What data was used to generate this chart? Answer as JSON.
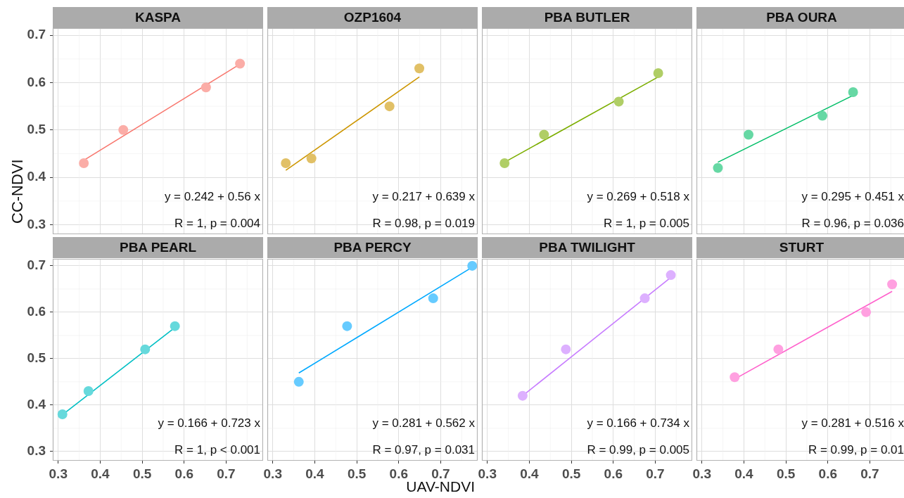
{
  "chart_data": [
    {
      "type": "scatter",
      "title": "KASPA",
      "ylabel": "CC-NDVI",
      "xlim": [
        0.287,
        0.788
      ],
      "ylim": [
        0.28,
        0.715
      ],
      "xticks": [
        0.3,
        0.4,
        0.5,
        0.6,
        0.7
      ],
      "yticks": [
        0.3,
        0.4,
        0.5,
        0.6,
        0.7
      ],
      "grid": true,
      "tick_labels": "y",
      "annotations": [
        "y = 0.242 + 0.56 x",
        "R = 1, p = 0.004"
      ],
      "series": [
        {
          "type": "scatter",
          "marker": "circle",
          "color": "#fbada7",
          "x": [
            0.361,
            0.455,
            0.652,
            0.733
          ],
          "values": [
            0.43,
            0.5,
            0.59,
            0.64
          ]
        },
        {
          "type": "line",
          "marker": "none",
          "color": "#f8766d",
          "x": [
            0.361,
            0.733
          ],
          "values": [
            0.436,
            0.639
          ]
        }
      ]
    },
    {
      "type": "scatter",
      "title": "OZP1604",
      "xlim": [
        0.287,
        0.788
      ],
      "ylim": [
        0.28,
        0.715
      ],
      "xticks": [
        0.3,
        0.4,
        0.5,
        0.6,
        0.7
      ],
      "yticks": [
        0.3,
        0.4,
        0.5,
        0.6,
        0.7
      ],
      "grid": true,
      "tick_labels": false,
      "annotations": [
        "y = 0.217 + 0.639 x",
        "R = 0.98, p = 0.019"
      ],
      "series": [
        {
          "type": "scatter",
          "marker": "circle",
          "color": "#e1c066",
          "x": [
            0.331,
            0.392,
            0.578,
            0.649
          ],
          "values": [
            0.43,
            0.44,
            0.55,
            0.63
          ]
        },
        {
          "type": "line",
          "marker": "none",
          "color": "#cd9600",
          "x": [
            0.331,
            0.649
          ],
          "values": [
            0.415,
            0.612
          ]
        }
      ]
    },
    {
      "type": "scatter",
      "title": "PBA BUTLER",
      "xlim": [
        0.287,
        0.788
      ],
      "ylim": [
        0.28,
        0.715
      ],
      "xticks": [
        0.3,
        0.4,
        0.5,
        0.6,
        0.7
      ],
      "yticks": [
        0.3,
        0.4,
        0.5,
        0.6,
        0.7
      ],
      "grid": true,
      "tick_labels": false,
      "annotations": [
        "y = 0.269 + 0.518 x",
        "R = 1, p = 0.005"
      ],
      "series": [
        {
          "type": "scatter",
          "marker": "circle",
          "color": "#b0ce66",
          "x": [
            0.341,
            0.435,
            0.613,
            0.707
          ],
          "values": [
            0.43,
            0.49,
            0.56,
            0.62
          ]
        },
        {
          "type": "line",
          "marker": "none",
          "color": "#7cae00",
          "x": [
            0.341,
            0.707
          ],
          "values": [
            0.432,
            0.612
          ]
        }
      ]
    },
    {
      "type": "scatter",
      "title": "PBA OURA",
      "xlim": [
        0.287,
        0.788
      ],
      "ylim": [
        0.28,
        0.715
      ],
      "xticks": [
        0.3,
        0.4,
        0.5,
        0.6,
        0.7
      ],
      "yticks": [
        0.3,
        0.4,
        0.5,
        0.6,
        0.7
      ],
      "grid": true,
      "tick_labels": false,
      "annotations": [
        "y = 0.295 + 0.451 x",
        "R = 0.96, p = 0.036"
      ],
      "series": [
        {
          "type": "scatter",
          "marker": "circle",
          "color": "#66d8a4",
          "x": [
            0.338,
            0.411,
            0.587,
            0.66
          ],
          "values": [
            0.42,
            0.49,
            0.53,
            0.58
          ]
        },
        {
          "type": "line",
          "marker": "none",
          "color": "#00be67",
          "x": [
            0.338,
            0.66
          ],
          "values": [
            0.432,
            0.573
          ]
        }
      ]
    },
    {
      "type": "scatter",
      "title": "PBA PEARL",
      "xlim": [
        0.287,
        0.788
      ],
      "ylim": [
        0.28,
        0.715
      ],
      "xticks": [
        0.3,
        0.4,
        0.5,
        0.6,
        0.7
      ],
      "yticks": [
        0.3,
        0.4,
        0.5,
        0.6,
        0.7
      ],
      "grid": true,
      "annotations": [
        "y = 0.166 + 0.723 x",
        "R = 1, p < 0.001"
      ],
      "series": [
        {
          "type": "scatter",
          "marker": "circle",
          "color": "#66d9dc",
          "x": [
            0.31,
            0.372,
            0.507,
            0.578
          ],
          "values": [
            0.38,
            0.43,
            0.52,
            0.57
          ]
        },
        {
          "type": "line",
          "marker": "none",
          "color": "#00bfc4",
          "x": [
            0.31,
            0.578
          ],
          "values": [
            0.379,
            0.567
          ]
        }
      ]
    },
    {
      "type": "scatter",
      "title": "PBA PERCY",
      "xlabel": "UAV-NDVI",
      "xlim": [
        0.287,
        0.788
      ],
      "ylim": [
        0.28,
        0.715
      ],
      "xticks": [
        0.3,
        0.4,
        0.5,
        0.6,
        0.7
      ],
      "yticks": [
        0.3,
        0.4,
        0.5,
        0.6,
        0.7
      ],
      "grid": true,
      "tick_labels": "x",
      "annotations": [
        "y = 0.281 + 0.562 x",
        "R = 0.97, p = 0.031"
      ],
      "series": [
        {
          "type": "scatter",
          "marker": "circle",
          "color": "#66cbff",
          "x": [
            0.362,
            0.477,
            0.682,
            0.775
          ],
          "values": [
            0.45,
            0.57,
            0.63,
            0.7
          ]
        },
        {
          "type": "line",
          "marker": "none",
          "color": "#00a9ff",
          "x": [
            0.362,
            0.775
          ],
          "values": [
            0.469,
            0.697
          ]
        }
      ]
    },
    {
      "type": "scatter",
      "title": "PBA TWILIGHT",
      "xlim": [
        0.287,
        0.788
      ],
      "ylim": [
        0.28,
        0.715
      ],
      "xticks": [
        0.3,
        0.4,
        0.5,
        0.6,
        0.7
      ],
      "yticks": [
        0.3,
        0.4,
        0.5,
        0.6,
        0.7
      ],
      "grid": true,
      "tick_labels": "x",
      "annotations": [
        "y = 0.166 + 0.734 x",
        "R = 0.99, p = 0.005"
      ],
      "series": [
        {
          "type": "scatter",
          "marker": "circle",
          "color": "#ddb0ff",
          "x": [
            0.384,
            0.487,
            0.675,
            0.737
          ],
          "values": [
            0.42,
            0.52,
            0.63,
            0.68
          ]
        },
        {
          "type": "line",
          "marker": "none",
          "color": "#c77cff",
          "x": [
            0.384,
            0.737
          ],
          "values": [
            0.42,
            0.675
          ]
        }
      ]
    },
    {
      "type": "scatter",
      "title": "STURT",
      "xlim": [
        0.287,
        0.788
      ],
      "ylim": [
        0.28,
        0.715
      ],
      "xticks": [
        0.3,
        0.4,
        0.5,
        0.6,
        0.7
      ],
      "yticks": [
        0.3,
        0.4,
        0.5,
        0.6,
        0.7
      ],
      "grid": true,
      "tick_labels": "x",
      "annotations": [
        "y = 0.281 + 0.516 x",
        "R = 0.99, p = 0.01"
      ],
      "series": [
        {
          "type": "scatter",
          "marker": "circle",
          "color": "#ffa0e0",
          "x": [
            0.378,
            0.482,
            0.691,
            0.753
          ],
          "values": [
            0.46,
            0.52,
            0.6,
            0.66
          ]
        },
        {
          "type": "line",
          "marker": "none",
          "color": "#ff61cc",
          "x": [
            0.378,
            0.753
          ],
          "values": [
            0.456,
            0.645
          ]
        }
      ]
    }
  ]
}
